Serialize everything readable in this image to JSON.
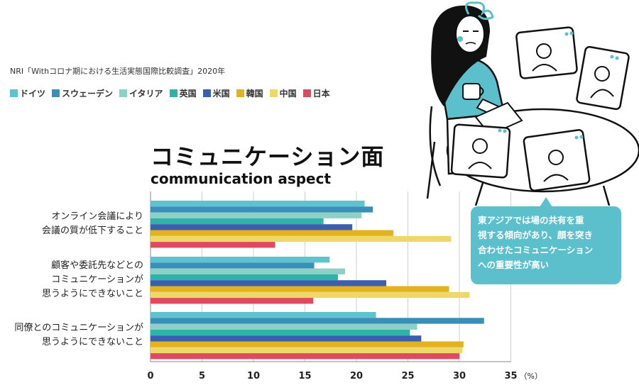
{
  "source": "NRI「Withコロナ期における生活実態国際比較調査」2020年",
  "heading": {
    "title_ja": "コミュニケーション面",
    "title_en": "communication aspect"
  },
  "callout": {
    "lines": [
      "東アジアでは場の共有を重",
      "視する傾向があり、顔を突き",
      "合わせたコミュニケーション",
      "への重要性が高い"
    ]
  },
  "chart_data": {
    "type": "bar",
    "orientation": "horizontal",
    "unit": "（%）",
    "xlim": [
      0,
      35
    ],
    "xticks": [
      0,
      5,
      10,
      15,
      20,
      25,
      30,
      35
    ],
    "grid": true,
    "legend_position": "top-left",
    "categories": [
      [
        "オンライン会議により",
        "会議の質が低下すること"
      ],
      [
        "顧客や委託先などとの",
        "コミュニケーションが",
        "思うようにできないこと"
      ],
      [
        "同僚とのコミュニケーションが",
        "思うようにできないこと"
      ]
    ],
    "series": [
      {
        "name": "ドイツ",
        "color": "#5ec3cf",
        "values": [
          20.8,
          17.4,
          21.9
        ]
      },
      {
        "name": "スウェーデン",
        "color": "#3a8fb8",
        "values": [
          21.6,
          15.9,
          32.4
        ]
      },
      {
        "name": "イタリア",
        "color": "#8dd0c6",
        "values": [
          20.5,
          18.9,
          25.9
        ]
      },
      {
        "name": "英国",
        "color": "#2fb3a8",
        "values": [
          16.8,
          18.2,
          25.2
        ]
      },
      {
        "name": "米国",
        "color": "#3a5fae",
        "values": [
          19.6,
          22.9,
          26.3
        ]
      },
      {
        "name": "韓国",
        "color": "#e3b21f",
        "values": [
          23.6,
          29.0,
          30.4
        ]
      },
      {
        "name": "中国",
        "color": "#efd86a",
        "values": [
          29.2,
          31.0,
          30.3
        ]
      },
      {
        "name": "日本",
        "color": "#df4a60",
        "values": [
          12.1,
          15.8,
          30.0
        ]
      }
    ]
  }
}
